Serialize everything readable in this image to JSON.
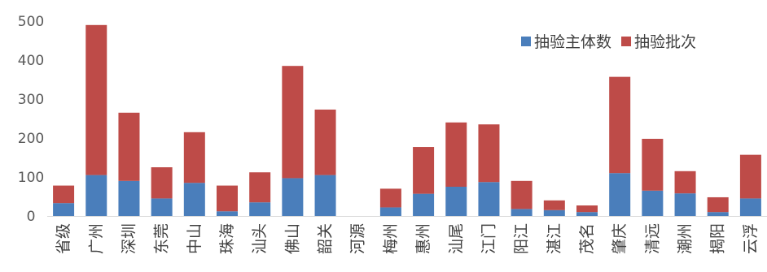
{
  "chart_data": {
    "type": "bar",
    "stacked": true,
    "title": "",
    "xlabel": "",
    "ylabel": "",
    "ylim": [
      0,
      500
    ],
    "yticks": [
      0,
      100,
      200,
      300,
      400,
      500
    ],
    "grid": false,
    "legend_position": "top-right",
    "categories": [
      "省级",
      "广州",
      "深圳",
      "东莞",
      "中山",
      "珠海",
      "汕头",
      "佛山",
      "韶关",
      "河源",
      "梅州",
      "惠州",
      "汕尾",
      "江门",
      "阳江",
      "湛江",
      "茂名",
      "肇庆",
      "清远",
      "潮州",
      "揭阳",
      "云浮"
    ],
    "series": [
      {
        "name": "抽验主体数",
        "color": "#4a7ebb",
        "values": [
          33,
          105,
          90,
          45,
          85,
          12,
          35,
          97,
          105,
          0,
          22,
          57,
          75,
          87,
          18,
          15,
          10,
          110,
          65,
          58,
          10,
          45
        ]
      },
      {
        "name": "抽验批次",
        "color": "#be4b48",
        "values": [
          45,
          385,
          175,
          80,
          130,
          66,
          77,
          288,
          168,
          0,
          48,
          120,
          165,
          148,
          72,
          25,
          17,
          247,
          133,
          57,
          38,
          112
        ]
      }
    ]
  }
}
